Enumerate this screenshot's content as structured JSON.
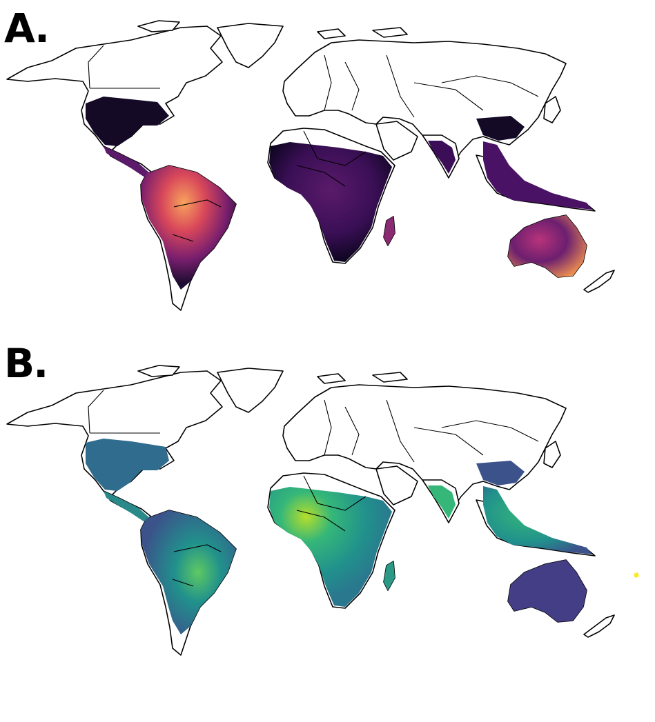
{
  "panels": [
    {
      "label": "A.",
      "colormap": "inferno"
    },
    {
      "label": "B.",
      "colormap": "viridis"
    }
  ]
}
